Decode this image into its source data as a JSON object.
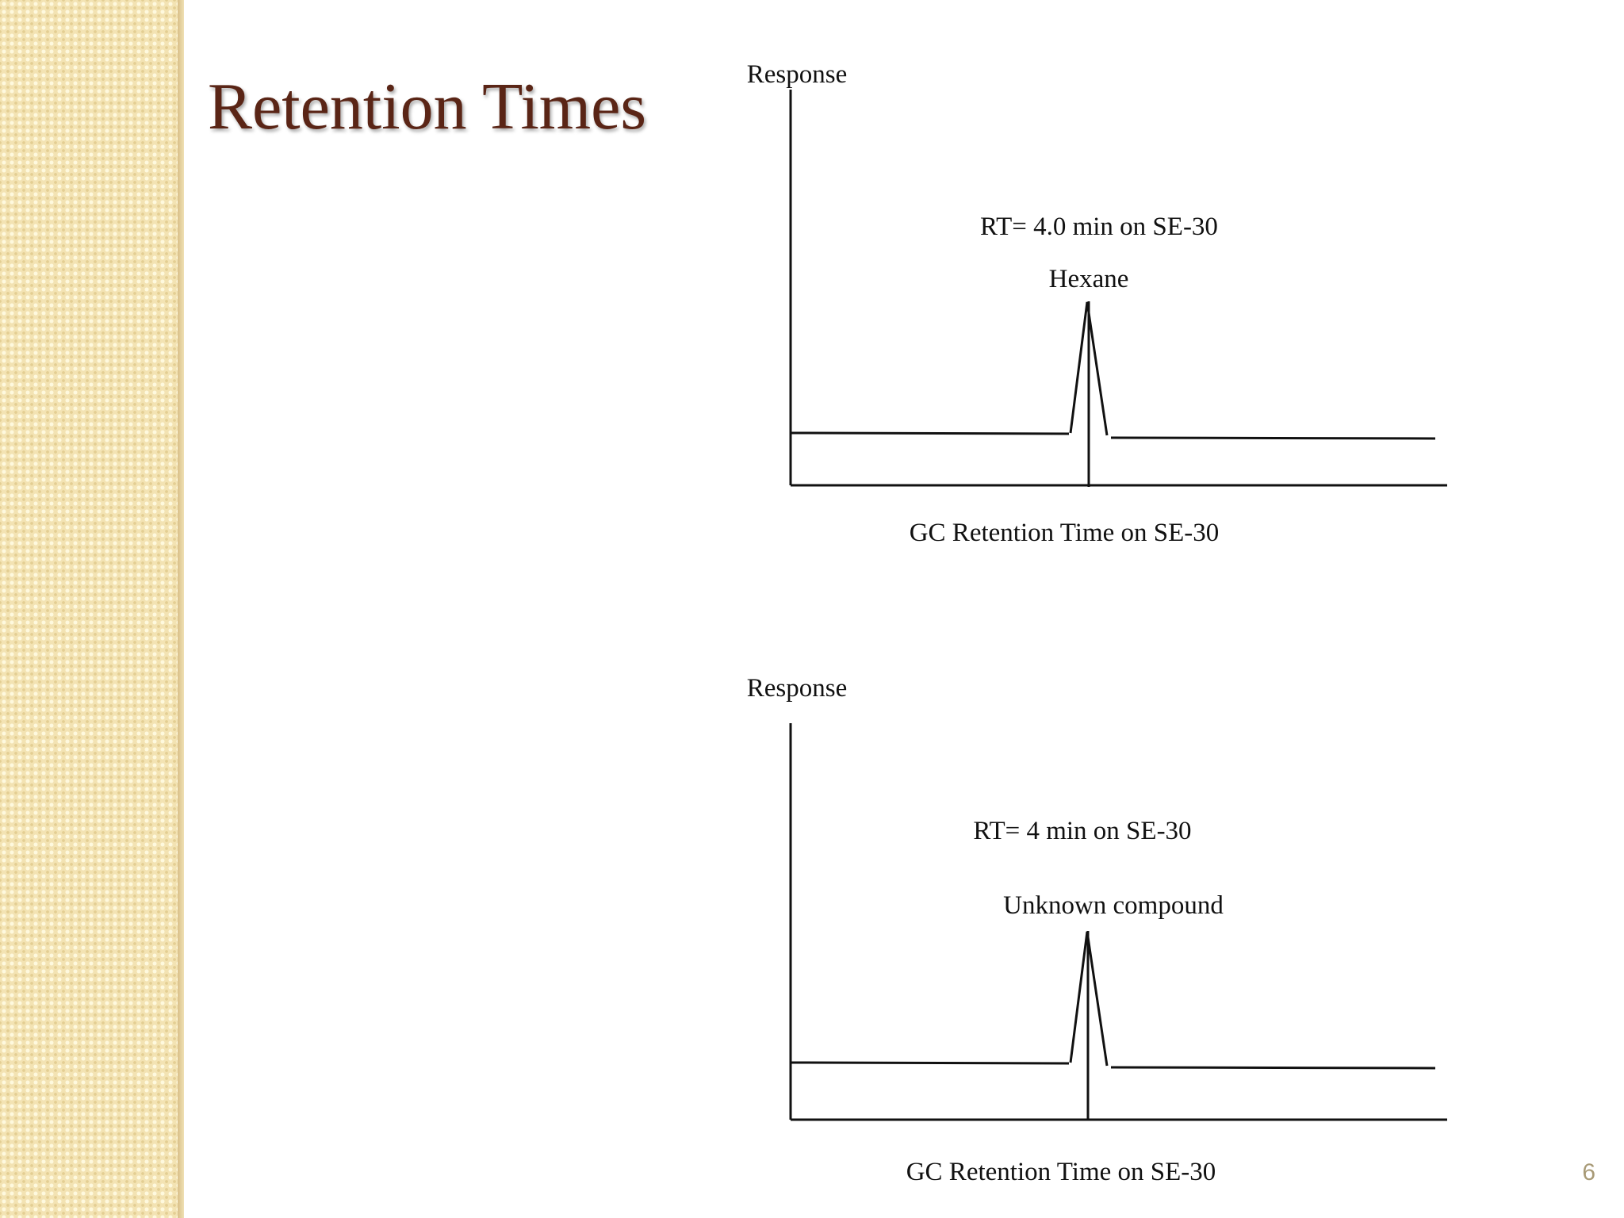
{
  "slide": {
    "title": "Retention Times",
    "number": "6"
  },
  "diagrams": [
    {
      "y_label": "Response",
      "x_label": "GC Retention Time on SE-30",
      "rt_label": "RT= 4.0 min on SE-30",
      "peak_label": "Hexane"
    },
    {
      "y_label": "Response",
      "x_label": "GC Retention Time on SE-30",
      "rt_label": "RT= 4 min on SE-30",
      "peak_label": "Unknown compound"
    }
  ],
  "colors": {
    "title": "#5a2516",
    "band": "#f3e3b3",
    "ink": "#111111",
    "slide_number": "#a89a76"
  }
}
